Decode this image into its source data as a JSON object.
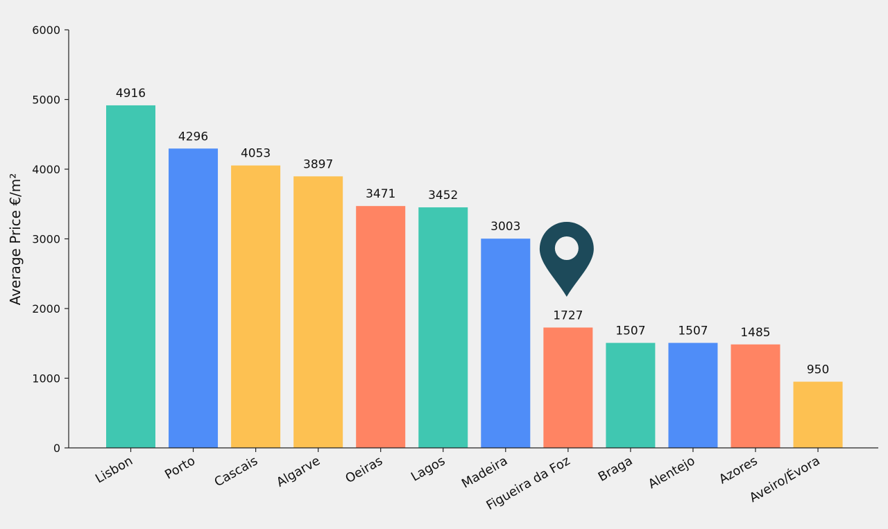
{
  "chart_data": {
    "type": "bar",
    "title": "",
    "xlabel": "",
    "ylabel": "Average Price €/m²",
    "ylim": [
      0,
      6000
    ],
    "yticks": [
      0,
      1000,
      2000,
      3000,
      4000,
      5000,
      6000
    ],
    "grid": false,
    "categories": [
      "Lisbon",
      "Porto",
      "Cascais",
      "Algarve",
      "Oeiras",
      "Lagos",
      "Madeira",
      "Figueira da Foz",
      "Braga",
      "Alentejo",
      "Azores",
      "Aveiro/Évora"
    ],
    "values": [
      4916,
      4296,
      4053,
      3897,
      3471,
      3452,
      3003,
      1727,
      1507,
      1507,
      1485,
      950
    ],
    "bar_colors": [
      "#40c7b1",
      "#4f8df8",
      "#fdc152",
      "#fdc152",
      "#ff8463",
      "#40c7b1",
      "#4f8df8",
      "#ff8463",
      "#40c7b1",
      "#4f8df8",
      "#ff8463",
      "#fdc152"
    ],
    "marker": {
      "icon": "map-pin-icon",
      "category": "Figueira da Foz",
      "color": "#1d4a5a"
    }
  }
}
